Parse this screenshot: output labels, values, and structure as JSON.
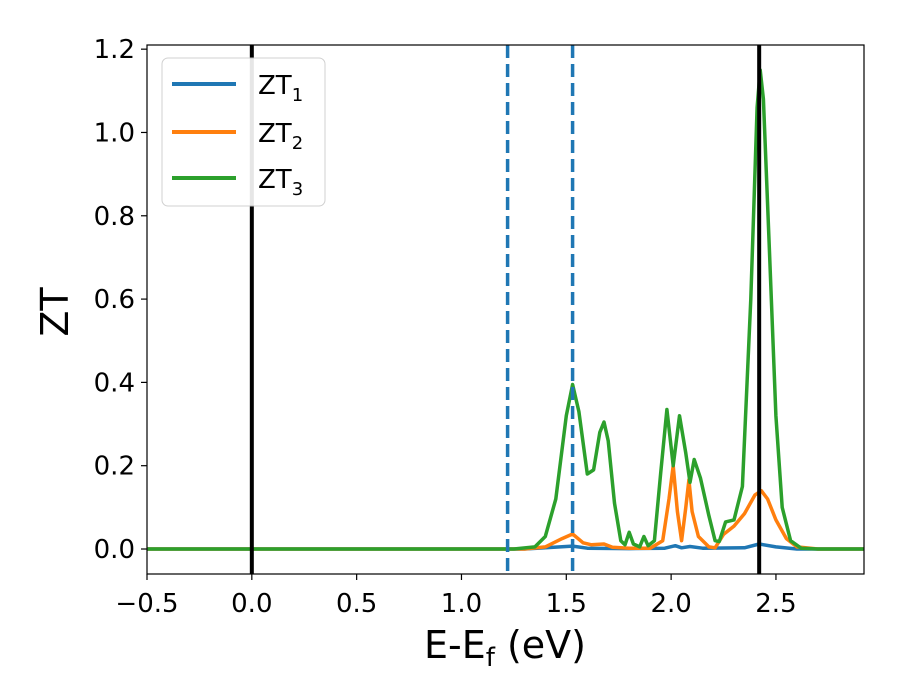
{
  "chart_data": {
    "type": "line",
    "xlabel": "E-E",
    "xlabel_sub": "f",
    "xlabel_unit": " (eV)",
    "ylabel": "ZT",
    "xlim": [
      -0.5,
      2.92
    ],
    "ylim": [
      -0.06,
      1.21
    ],
    "xticks": [
      -0.5,
      0.0,
      0.5,
      1.0,
      1.5,
      2.0,
      2.5
    ],
    "xtick_labels": [
      "−0.5",
      "0.0",
      "0.5",
      "1.0",
      "1.5",
      "2.0",
      "2.5"
    ],
    "yticks": [
      0.0,
      0.2,
      0.4,
      0.6,
      0.8,
      1.0,
      1.2
    ],
    "ytick_labels": [
      "0.0",
      "0.2",
      "0.4",
      "0.6",
      "0.8",
      "1.0",
      "1.2"
    ],
    "grid": false,
    "legend_position": "top-left",
    "vlines": [
      {
        "x": 0.0,
        "style": "solid",
        "color": "#000000"
      },
      {
        "x": 2.42,
        "style": "solid",
        "color": "#000000"
      },
      {
        "x": 1.22,
        "style": "dashed",
        "color": "#1f77b4"
      },
      {
        "x": 1.53,
        "style": "dashed",
        "color": "#1f77b4"
      }
    ],
    "series": [
      {
        "name": "ZT",
        "name_sub": "1",
        "color": "#1f77b4",
        "points": [
          [
            -0.5,
            0
          ],
          [
            1.3,
            0
          ],
          [
            1.53,
            0.007
          ],
          [
            1.6,
            0.002
          ],
          [
            1.8,
            0.001
          ],
          [
            1.97,
            0.002
          ],
          [
            2.02,
            0.008
          ],
          [
            2.05,
            0.003
          ],
          [
            2.09,
            0.006
          ],
          [
            2.15,
            0.002
          ],
          [
            2.35,
            0.003
          ],
          [
            2.42,
            0.012
          ],
          [
            2.5,
            0.005
          ],
          [
            2.6,
            0
          ],
          [
            2.92,
            0
          ]
        ]
      },
      {
        "name": "ZT",
        "name_sub": "2",
        "color": "#ff7f0e",
        "points": [
          [
            -0.5,
            0
          ],
          [
            1.3,
            0
          ],
          [
            1.4,
            0.005
          ],
          [
            1.48,
            0.025
          ],
          [
            1.53,
            0.036
          ],
          [
            1.58,
            0.015
          ],
          [
            1.62,
            0.01
          ],
          [
            1.68,
            0.012
          ],
          [
            1.72,
            0.004
          ],
          [
            1.8,
            0.002
          ],
          [
            1.9,
            0.002
          ],
          [
            1.96,
            0.02
          ],
          [
            1.99,
            0.12
          ],
          [
            2.01,
            0.2
          ],
          [
            2.03,
            0.09
          ],
          [
            2.05,
            0.02
          ],
          [
            2.07,
            0.1
          ],
          [
            2.085,
            0.166
          ],
          [
            2.1,
            0.09
          ],
          [
            2.13,
            0.03
          ],
          [
            2.18,
            0.005
          ],
          [
            2.21,
            0.003
          ],
          [
            2.25,
            0.035
          ],
          [
            2.3,
            0.055
          ],
          [
            2.35,
            0.085
          ],
          [
            2.4,
            0.13
          ],
          [
            2.43,
            0.14
          ],
          [
            2.46,
            0.12
          ],
          [
            2.5,
            0.07
          ],
          [
            2.55,
            0.025
          ],
          [
            2.6,
            0.005
          ],
          [
            2.7,
            0
          ],
          [
            2.92,
            0
          ]
        ]
      },
      {
        "name": "ZT",
        "name_sub": "3",
        "color": "#2ca02c",
        "points": [
          [
            -0.5,
            0
          ],
          [
            1.25,
            0
          ],
          [
            1.35,
            0.005
          ],
          [
            1.4,
            0.03
          ],
          [
            1.45,
            0.12
          ],
          [
            1.5,
            0.32
          ],
          [
            1.53,
            0.395
          ],
          [
            1.56,
            0.33
          ],
          [
            1.6,
            0.18
          ],
          [
            1.63,
            0.19
          ],
          [
            1.66,
            0.28
          ],
          [
            1.68,
            0.305
          ],
          [
            1.7,
            0.26
          ],
          [
            1.73,
            0.11
          ],
          [
            1.76,
            0.02
          ],
          [
            1.78,
            0.01
          ],
          [
            1.8,
            0.04
          ],
          [
            1.82,
            0.012
          ],
          [
            1.85,
            0.005
          ],
          [
            1.87,
            0.03
          ],
          [
            1.89,
            0.008
          ],
          [
            1.92,
            0.02
          ],
          [
            1.95,
            0.18
          ],
          [
            1.98,
            0.335
          ],
          [
            2.01,
            0.2
          ],
          [
            2.04,
            0.32
          ],
          [
            2.07,
            0.23
          ],
          [
            2.09,
            0.16
          ],
          [
            2.11,
            0.215
          ],
          [
            2.14,
            0.17
          ],
          [
            2.18,
            0.08
          ],
          [
            2.21,
            0.02
          ],
          [
            2.23,
            0.018
          ],
          [
            2.26,
            0.065
          ],
          [
            2.3,
            0.07
          ],
          [
            2.34,
            0.15
          ],
          [
            2.38,
            0.6
          ],
          [
            2.41,
            1.06
          ],
          [
            2.425,
            1.15
          ],
          [
            2.44,
            1.08
          ],
          [
            2.47,
            0.7
          ],
          [
            2.5,
            0.32
          ],
          [
            2.53,
            0.1
          ],
          [
            2.57,
            0.02
          ],
          [
            2.62,
            0.002
          ],
          [
            2.7,
            0
          ],
          [
            2.92,
            0
          ]
        ]
      }
    ]
  }
}
